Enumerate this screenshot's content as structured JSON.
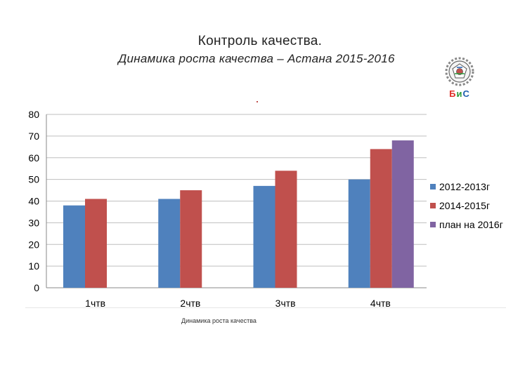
{
  "header": {
    "title": "Контроль качества.",
    "subtitle": "Динамика роста качества – Астана 2015-2016"
  },
  "logo": {
    "text_parts": [
      "Б",
      "и",
      "С"
    ],
    "colors": [
      "#e0302a",
      "#2b9a3a",
      "#1f5fb0"
    ]
  },
  "caption": "Динамика роста качества",
  "chart_data": {
    "type": "bar",
    "categories": [
      "1чтв",
      "2чтв",
      "3чтв",
      "4чтв"
    ],
    "series": [
      {
        "name": "2012-2013г",
        "color": "#4f81bd",
        "values": [
          38,
          41,
          47,
          50
        ]
      },
      {
        "name": "2014-2015г",
        "color": "#c0504d",
        "values": [
          41,
          45,
          54,
          64
        ]
      },
      {
        "name": "план на 2016г",
        "color": "#8064a2",
        "values": [
          null,
          null,
          null,
          68
        ]
      }
    ],
    "ylim": [
      0,
      80
    ],
    "yticks": [
      0,
      10,
      20,
      30,
      40,
      50,
      60,
      70,
      80
    ],
    "grid": true,
    "legend": "right"
  }
}
